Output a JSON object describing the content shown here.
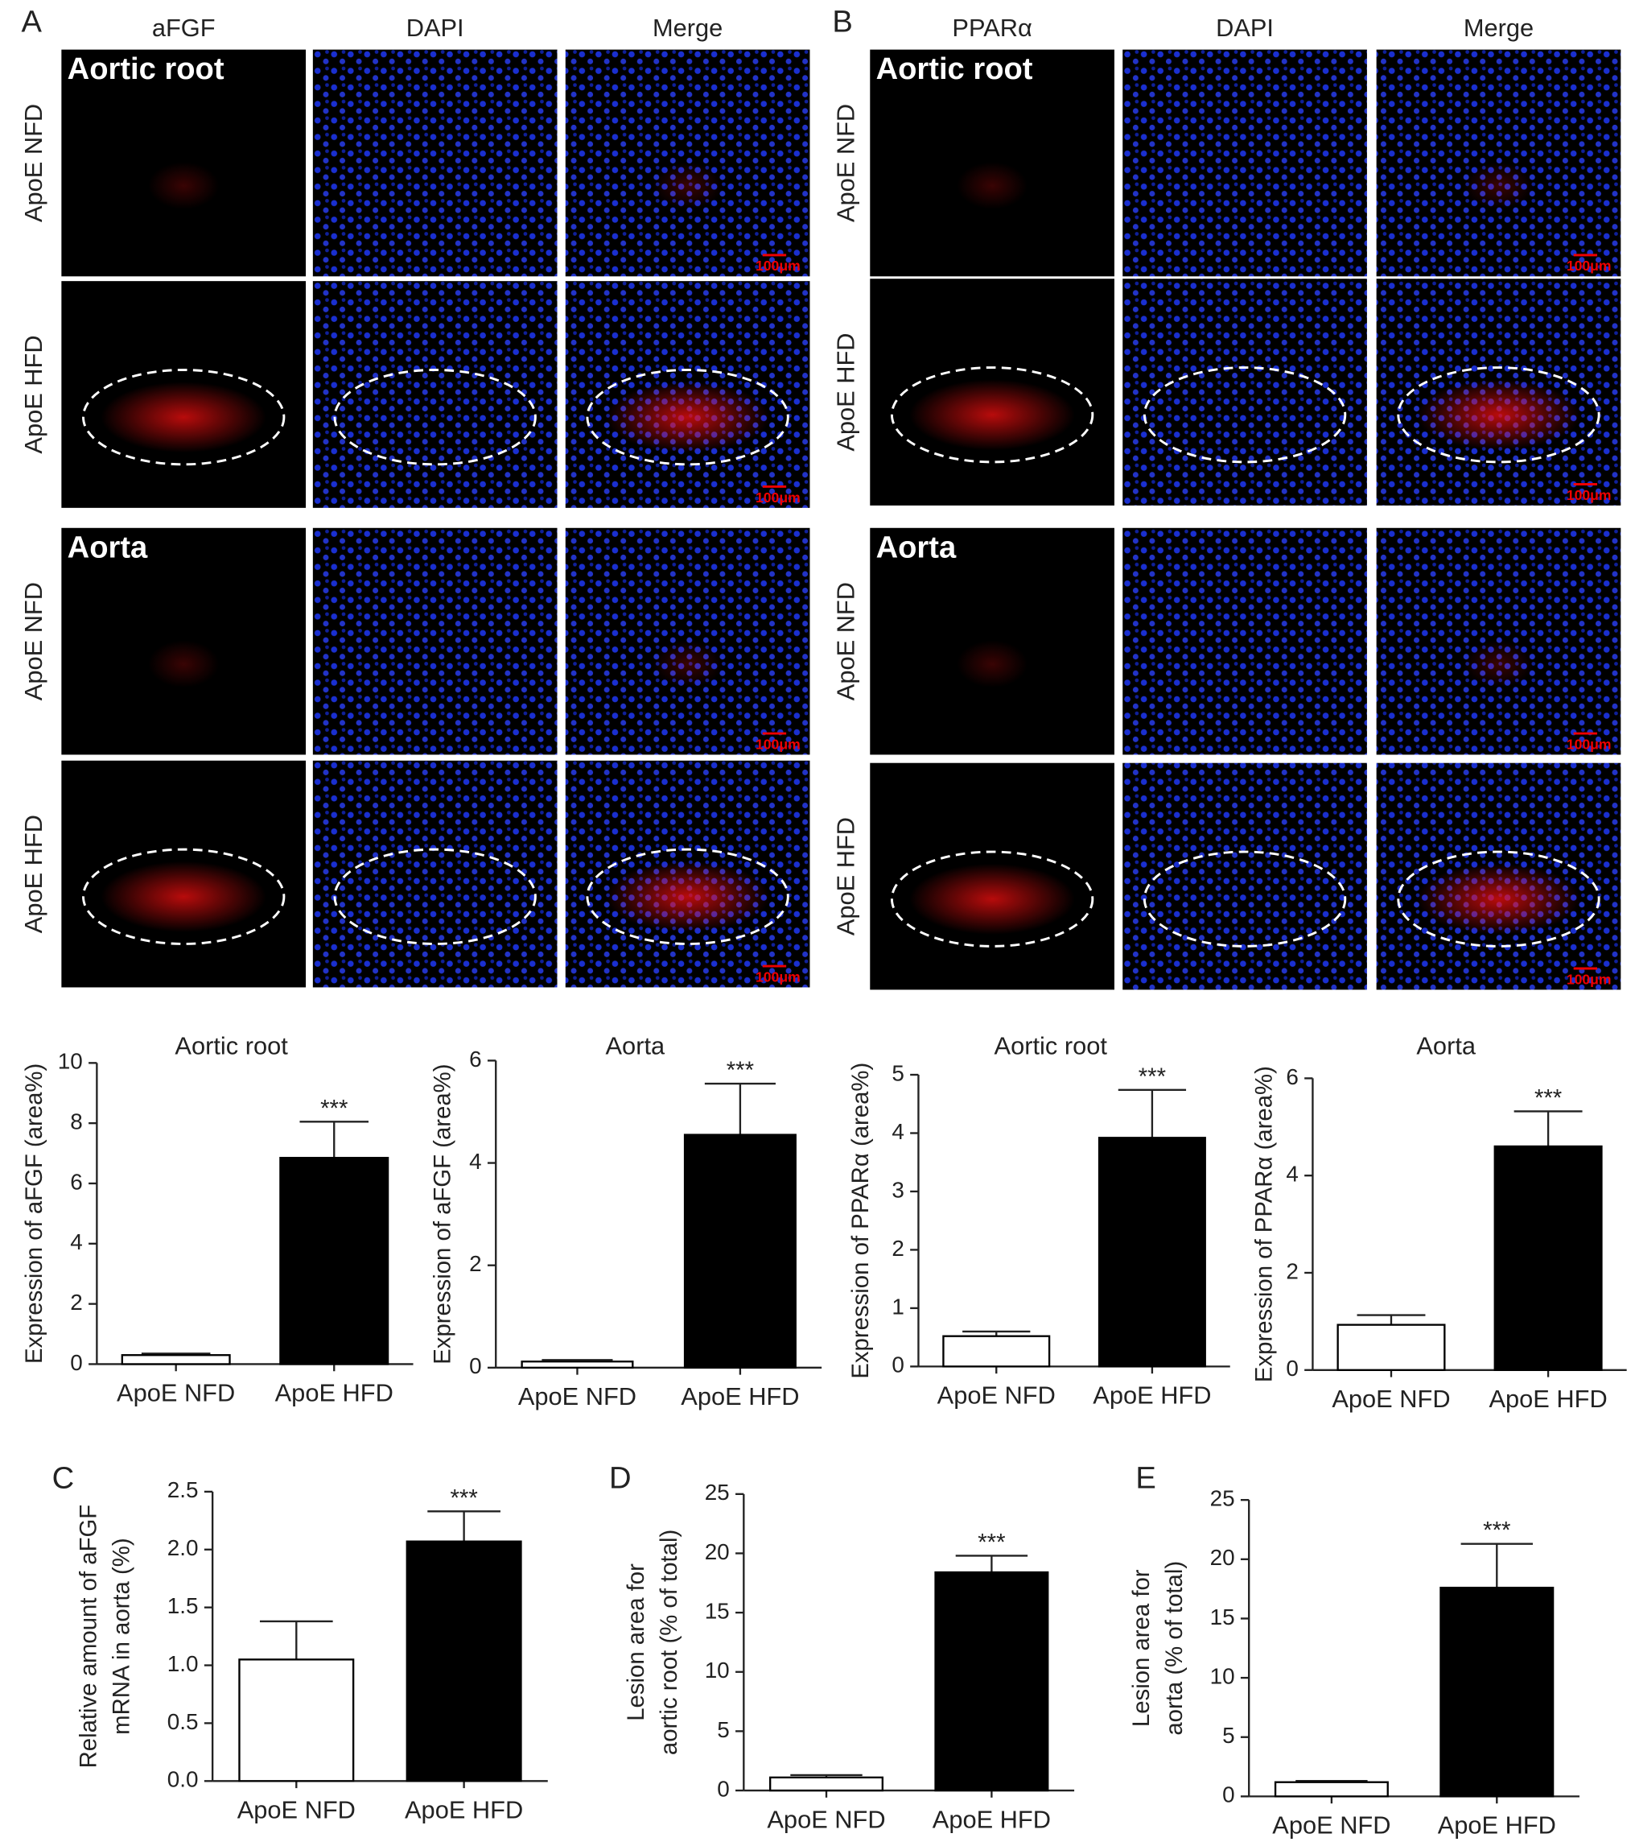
{
  "panel_labels": [
    "A",
    "B",
    "C",
    "D",
    "E"
  ],
  "micrographs": [
    {
      "columns": [
        "aFGF",
        "DAPI",
        "Merge"
      ],
      "section_labels": [
        "Aortic root",
        "Aorta"
      ],
      "row_labels": [
        "ApoE NFD",
        "ApoE HFD",
        "ApoE NFD",
        "ApoE HFD"
      ],
      "scale_bar": "100μm"
    },
    {
      "columns": [
        "PPARα",
        "DAPI",
        "Merge"
      ],
      "section_labels": [
        "Aortic root",
        "Aorta"
      ],
      "row_labels": [
        "ApoE NFD",
        "ApoE HFD",
        "ApoE NFD",
        "ApoE HFD"
      ],
      "scale_bar": "100μm"
    }
  ],
  "chart_data": [
    {
      "type": "bar",
      "title": "Aortic root",
      "ylabel": [
        "Expression of aFGF (area%)"
      ],
      "categories": [
        "ApoE NFD",
        "ApoE HFD"
      ],
      "values": [
        0.3,
        6.85
      ],
      "errors": [
        0.05,
        1.2
      ],
      "colors": [
        "#ffffff",
        "#000000"
      ],
      "annotation": "***",
      "ylim": [
        0,
        10
      ],
      "yticks": [
        0,
        2,
        4,
        6,
        8,
        10
      ]
    },
    {
      "type": "bar",
      "title": "Aorta",
      "ylabel": [
        "Expression of aFGF (area%)"
      ],
      "categories": [
        "ApoE NFD",
        "ApoE HFD"
      ],
      "values": [
        0.12,
        4.55
      ],
      "errors": [
        0.03,
        1.0
      ],
      "colors": [
        "#ffffff",
        "#000000"
      ],
      "annotation": "***",
      "ylim": [
        0,
        6
      ],
      "yticks": [
        0,
        2,
        4,
        6
      ]
    },
    {
      "type": "bar",
      "title": "Aortic root",
      "ylabel": [
        "Expression of PPARα (area%)"
      ],
      "categories": [
        "ApoE NFD",
        "ApoE HFD"
      ],
      "values": [
        0.52,
        3.92
      ],
      "errors": [
        0.08,
        0.82
      ],
      "colors": [
        "#ffffff",
        "#000000"
      ],
      "annotation": "***",
      "ylim": [
        0,
        5
      ],
      "yticks": [
        0,
        1,
        2,
        3,
        4,
        5
      ]
    },
    {
      "type": "bar",
      "title": "Aorta",
      "ylabel": [
        "Expression of PPARα (area%)"
      ],
      "categories": [
        "ApoE NFD",
        "ApoE HFD"
      ],
      "values": [
        0.93,
        4.6
      ],
      "errors": [
        0.2,
        0.72
      ],
      "colors": [
        "#ffffff",
        "#000000"
      ],
      "annotation": "***",
      "ylim": [
        0,
        6
      ],
      "yticks": [
        0,
        2,
        4,
        6
      ]
    },
    {
      "type": "bar",
      "ylabel": [
        "Relative amount of aFGF",
        "mRNA in aorta (%)"
      ],
      "categories": [
        "ApoE NFD",
        "ApoE HFD"
      ],
      "values": [
        1.05,
        2.07
      ],
      "errors": [
        0.33,
        0.26
      ],
      "colors": [
        "#ffffff",
        "#000000"
      ],
      "annotation": "***",
      "ylim": [
        0,
        2.5
      ],
      "yticks": [
        {
          "value": 0,
          "label": "0.0"
        },
        0.5,
        {
          "value": 1,
          "label": "1.0"
        },
        1.5,
        {
          "value": 2,
          "label": "2.0"
        },
        2.5
      ]
    },
    {
      "type": "bar",
      "ylabel": [
        "Lesion area for",
        "aortic root (% of total)"
      ],
      "categories": [
        "ApoE NFD",
        "ApoE HFD"
      ],
      "values": [
        1.1,
        18.4
      ],
      "errors": [
        0.2,
        1.4
      ],
      "colors": [
        "#ffffff",
        "#000000"
      ],
      "annotation": "***",
      "ylim": [
        0,
        25
      ],
      "yticks": [
        0,
        5,
        10,
        15,
        20,
        25
      ]
    },
    {
      "type": "bar",
      "ylabel": [
        "Lesion area for",
        "aorta (% of total)"
      ],
      "categories": [
        "ApoE NFD",
        "ApoE HFD"
      ],
      "values": [
        1.2,
        17.6
      ],
      "errors": [
        0.1,
        3.7
      ],
      "colors": [
        "#ffffff",
        "#000000"
      ],
      "annotation": "***",
      "ylim": [
        0,
        25
      ],
      "yticks": [
        0,
        5,
        10,
        15,
        20,
        25
      ]
    }
  ]
}
